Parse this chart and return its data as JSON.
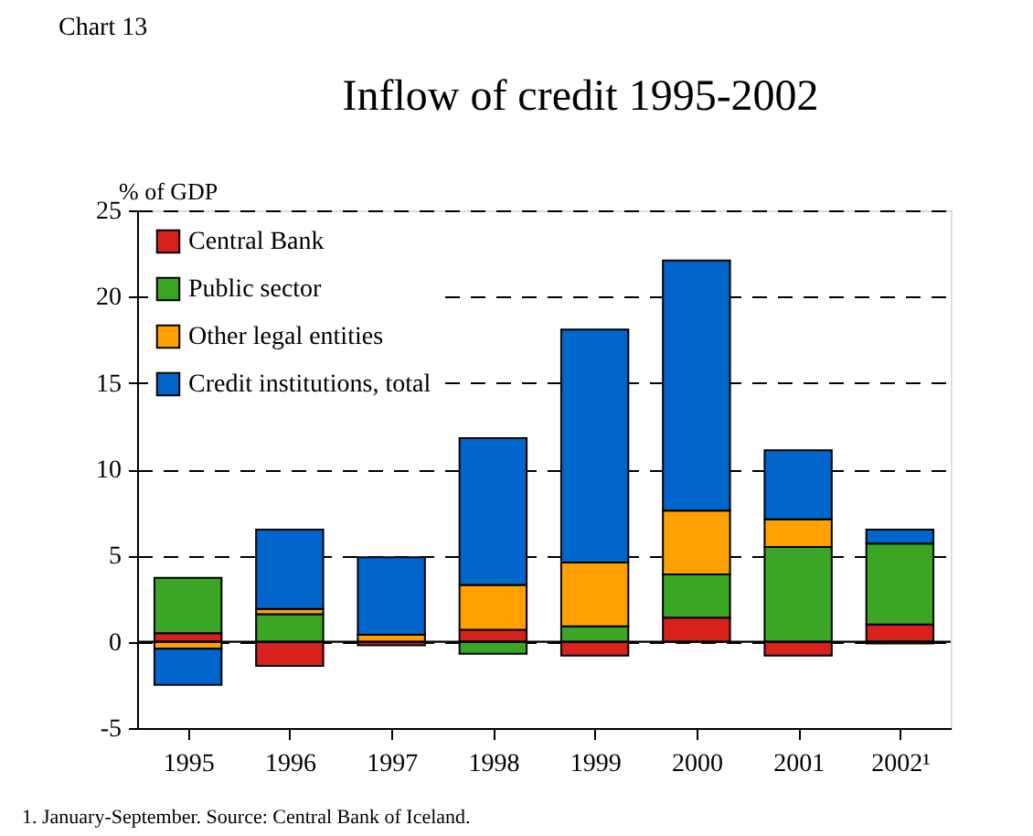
{
  "chart_data": {
    "type": "bar",
    "title": "Inflow of credit 1995-2002",
    "ylabel": "% of GDP",
    "annotations": [
      "Chart 13",
      "1. January-September.  Source: Central Bank of Iceland."
    ],
    "categories": [
      "1995",
      "1996",
      "1997",
      "1998",
      "1999",
      "2000",
      "2001",
      "2002¹"
    ],
    "stacked": true,
    "series": [
      {
        "name": "Central Bank",
        "color": "#d7211b",
        "values": [
          0.5,
          -1.4,
          -0.2,
          0.7,
          -0.8,
          1.4,
          -0.8,
          1.0
        ]
      },
      {
        "name": "Public sector",
        "color": "#3aa623",
        "values": [
          3.2,
          1.6,
          0.0,
          -0.7,
          0.9,
          2.5,
          5.5,
          4.7
        ]
      },
      {
        "name": "Other legal entities",
        "color": "#ffa000",
        "values": [
          -0.4,
          0.3,
          0.4,
          2.6,
          3.7,
          3.7,
          1.6,
          -0.1
        ]
      },
      {
        "name": "Credit institutions, total",
        "color": "#0066cc",
        "values": [
          -2.1,
          4.6,
          4.5,
          8.5,
          13.5,
          14.5,
          4.0,
          0.8
        ]
      }
    ],
    "ylim": [
      -5,
      25
    ],
    "yticks": [
      -5,
      0,
      5,
      10,
      15,
      20,
      25
    ],
    "grid": "y",
    "legend": "top left",
    "ref_lines": [
      {
        "axis": "y",
        "value": 0,
        "label": null,
        "line_style": "solid"
      }
    ]
  }
}
